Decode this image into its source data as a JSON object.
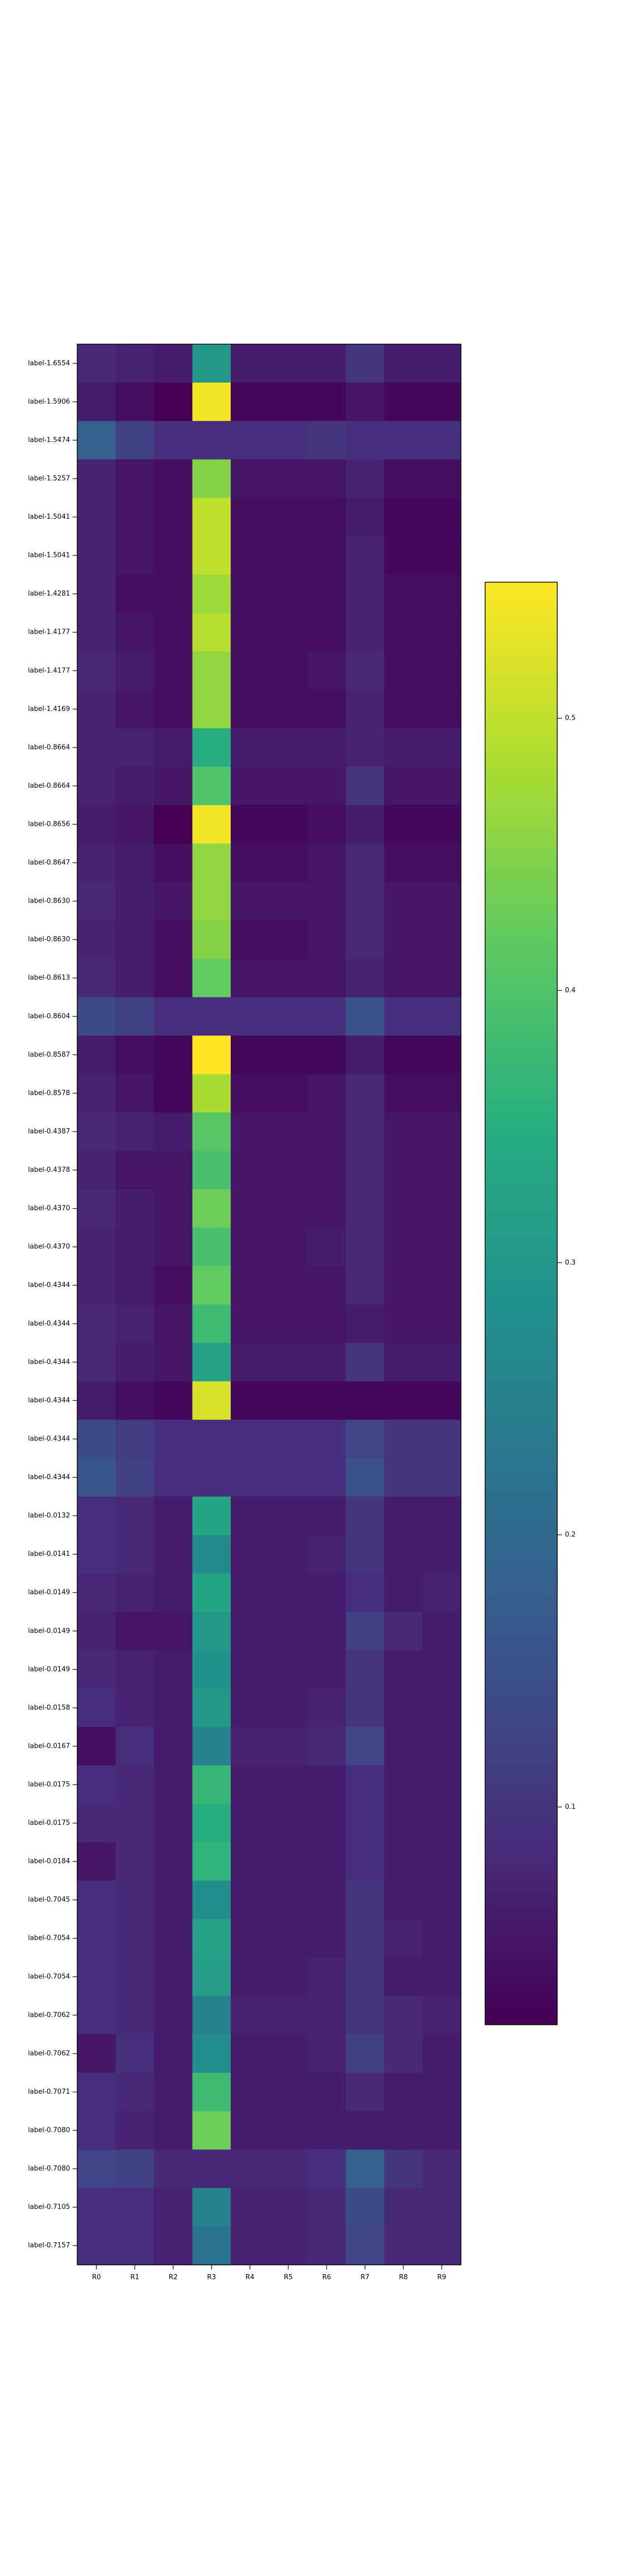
{
  "chart_data": {
    "type": "heatmap",
    "colormap": "viridis",
    "x_labels": [
      "R0",
      "R1",
      "R2",
      "R3",
      "R4",
      "R5",
      "R6",
      "R7",
      "R8",
      "R9"
    ],
    "y_labels": [
      "label-1.6554",
      "label-1.5906",
      "label-1.5474",
      "label-1.5257",
      "label-1.5041",
      "label-1.5041",
      "label-1.4281",
      "label-1.4177",
      "label-1.4177",
      "label-1.4169",
      "label-0.8664",
      "label-0.8664",
      "label-0.8656",
      "label-0.8647",
      "label-0.8630",
      "label-0.8630",
      "label-0.8613",
      "label-0.8604",
      "label-0.8587",
      "label-0.8578",
      "label-0.4387",
      "label-0.4378",
      "label-0.4370",
      "label-0.4370",
      "label-0.4344",
      "label-0.4344",
      "label-0.4344",
      "label-0.4344",
      "label-0.4344",
      "label-0.4344",
      "label-0.0132",
      "label-0.0141",
      "label-0.0149",
      "label-0.0149",
      "label-0.0149",
      "label-0.0158",
      "label-0.0167",
      "label-0.0175",
      "label-0.0175",
      "label-0.0184",
      "label-0.7045",
      "label-0.7054",
      "label-0.7054",
      "label-0.7062",
      "label-0.7062",
      "label-0.7071",
      "label-0.7080",
      "label-0.7080",
      "label-0.7105",
      "label-0.7157"
    ],
    "values": [
      [
        0.08,
        0.07,
        0.06,
        0.3,
        0.06,
        0.06,
        0.06,
        0.1,
        0.06,
        0.06
      ],
      [
        0.06,
        0.04,
        0.02,
        0.54,
        0.03,
        0.03,
        0.03,
        0.05,
        0.03,
        0.03
      ],
      [
        0.18,
        0.12,
        0.09,
        0.09,
        0.09,
        0.09,
        0.1,
        0.09,
        0.09,
        0.09
      ],
      [
        0.07,
        0.05,
        0.04,
        0.45,
        0.05,
        0.05,
        0.05,
        0.07,
        0.04,
        0.04
      ],
      [
        0.07,
        0.05,
        0.04,
        0.5,
        0.04,
        0.04,
        0.04,
        0.06,
        0.03,
        0.03
      ],
      [
        0.07,
        0.05,
        0.04,
        0.5,
        0.04,
        0.04,
        0.04,
        0.07,
        0.03,
        0.03
      ],
      [
        0.07,
        0.04,
        0.04,
        0.47,
        0.04,
        0.04,
        0.04,
        0.07,
        0.04,
        0.04
      ],
      [
        0.07,
        0.05,
        0.04,
        0.49,
        0.04,
        0.04,
        0.04,
        0.07,
        0.04,
        0.04
      ],
      [
        0.08,
        0.06,
        0.04,
        0.46,
        0.04,
        0.04,
        0.05,
        0.08,
        0.04,
        0.04
      ],
      [
        0.07,
        0.05,
        0.04,
        0.46,
        0.04,
        0.04,
        0.04,
        0.07,
        0.04,
        0.04
      ],
      [
        0.07,
        0.07,
        0.06,
        0.35,
        0.06,
        0.06,
        0.06,
        0.07,
        0.06,
        0.06
      ],
      [
        0.07,
        0.06,
        0.05,
        0.4,
        0.05,
        0.05,
        0.05,
        0.1,
        0.05,
        0.05
      ],
      [
        0.06,
        0.05,
        0.02,
        0.54,
        0.03,
        0.03,
        0.04,
        0.06,
        0.03,
        0.03
      ],
      [
        0.07,
        0.06,
        0.04,
        0.46,
        0.04,
        0.04,
        0.05,
        0.08,
        0.04,
        0.04
      ],
      [
        0.08,
        0.06,
        0.05,
        0.46,
        0.05,
        0.05,
        0.05,
        0.08,
        0.05,
        0.05
      ],
      [
        0.07,
        0.06,
        0.04,
        0.45,
        0.04,
        0.04,
        0.05,
        0.08,
        0.05,
        0.05
      ],
      [
        0.08,
        0.06,
        0.04,
        0.42,
        0.05,
        0.05,
        0.05,
        0.07,
        0.05,
        0.05
      ],
      [
        0.14,
        0.12,
        0.09,
        0.09,
        0.09,
        0.09,
        0.09,
        0.15,
        0.09,
        0.09
      ],
      [
        0.06,
        0.04,
        0.03,
        0.55,
        0.03,
        0.03,
        0.03,
        0.06,
        0.03,
        0.03
      ],
      [
        0.07,
        0.05,
        0.03,
        0.48,
        0.04,
        0.04,
        0.05,
        0.08,
        0.04,
        0.04
      ],
      [
        0.08,
        0.07,
        0.06,
        0.41,
        0.05,
        0.05,
        0.05,
        0.08,
        0.05,
        0.05
      ],
      [
        0.07,
        0.05,
        0.05,
        0.39,
        0.05,
        0.05,
        0.05,
        0.08,
        0.05,
        0.05
      ],
      [
        0.08,
        0.06,
        0.05,
        0.43,
        0.05,
        0.05,
        0.05,
        0.08,
        0.05,
        0.05
      ],
      [
        0.07,
        0.06,
        0.05,
        0.39,
        0.05,
        0.05,
        0.06,
        0.08,
        0.05,
        0.05
      ],
      [
        0.07,
        0.06,
        0.04,
        0.42,
        0.05,
        0.05,
        0.05,
        0.08,
        0.05,
        0.05
      ],
      [
        0.08,
        0.07,
        0.05,
        0.38,
        0.05,
        0.05,
        0.05,
        0.06,
        0.05,
        0.05
      ],
      [
        0.08,
        0.06,
        0.05,
        0.32,
        0.06,
        0.06,
        0.06,
        0.1,
        0.06,
        0.06
      ],
      [
        0.06,
        0.04,
        0.03,
        0.52,
        0.03,
        0.03,
        0.03,
        0.03,
        0.03,
        0.03
      ],
      [
        0.14,
        0.11,
        0.09,
        0.09,
        0.09,
        0.09,
        0.09,
        0.13,
        0.1,
        0.1
      ],
      [
        0.16,
        0.12,
        0.09,
        0.09,
        0.09,
        0.09,
        0.09,
        0.15,
        0.1,
        0.1
      ],
      [
        0.09,
        0.08,
        0.06,
        0.33,
        0.06,
        0.06,
        0.06,
        0.1,
        0.06,
        0.06
      ],
      [
        0.09,
        0.08,
        0.06,
        0.27,
        0.06,
        0.06,
        0.07,
        0.1,
        0.06,
        0.06
      ],
      [
        0.08,
        0.07,
        0.06,
        0.33,
        0.06,
        0.06,
        0.06,
        0.09,
        0.06,
        0.07
      ],
      [
        0.07,
        0.05,
        0.05,
        0.3,
        0.06,
        0.06,
        0.06,
        0.12,
        0.08,
        0.06
      ],
      [
        0.08,
        0.07,
        0.06,
        0.29,
        0.06,
        0.06,
        0.06,
        0.1,
        0.06,
        0.06
      ],
      [
        0.09,
        0.07,
        0.06,
        0.3,
        0.06,
        0.06,
        0.07,
        0.1,
        0.06,
        0.06
      ],
      [
        0.04,
        0.09,
        0.06,
        0.25,
        0.07,
        0.07,
        0.08,
        0.13,
        0.06,
        0.06
      ],
      [
        0.09,
        0.08,
        0.06,
        0.37,
        0.06,
        0.06,
        0.06,
        0.09,
        0.06,
        0.06
      ],
      [
        0.08,
        0.08,
        0.06,
        0.35,
        0.06,
        0.06,
        0.06,
        0.09,
        0.06,
        0.06
      ],
      [
        0.05,
        0.08,
        0.06,
        0.36,
        0.06,
        0.06,
        0.06,
        0.09,
        0.06,
        0.06
      ],
      [
        0.09,
        0.08,
        0.06,
        0.28,
        0.06,
        0.06,
        0.06,
        0.1,
        0.06,
        0.06
      ],
      [
        0.09,
        0.08,
        0.06,
        0.32,
        0.06,
        0.06,
        0.06,
        0.1,
        0.07,
        0.06
      ],
      [
        0.09,
        0.08,
        0.06,
        0.31,
        0.06,
        0.06,
        0.07,
        0.1,
        0.06,
        0.06
      ],
      [
        0.09,
        0.08,
        0.06,
        0.25,
        0.07,
        0.07,
        0.07,
        0.1,
        0.08,
        0.07
      ],
      [
        0.05,
        0.09,
        0.06,
        0.28,
        0.06,
        0.06,
        0.07,
        0.12,
        0.08,
        0.06
      ],
      [
        0.09,
        0.08,
        0.06,
        0.38,
        0.06,
        0.06,
        0.06,
        0.08,
        0.06,
        0.06
      ],
      [
        0.09,
        0.07,
        0.06,
        0.43,
        0.06,
        0.06,
        0.06,
        0.06,
        0.06,
        0.06
      ],
      [
        0.13,
        0.12,
        0.08,
        0.08,
        0.08,
        0.08,
        0.09,
        0.18,
        0.1,
        0.08
      ],
      [
        0.09,
        0.09,
        0.07,
        0.25,
        0.07,
        0.07,
        0.08,
        0.14,
        0.08,
        0.08
      ],
      [
        0.09,
        0.09,
        0.07,
        0.22,
        0.07,
        0.07,
        0.08,
        0.13,
        0.08,
        0.08
      ]
    ],
    "colorbar": {
      "min": 0.02,
      "max": 0.55,
      "ticks": [
        0.1,
        0.2,
        0.3,
        0.4,
        0.5
      ],
      "tick_labels": [
        "0.1",
        "0.2",
        "0.3",
        "0.4",
        "0.5"
      ]
    },
    "title": "",
    "xlabel": "",
    "ylabel": ""
  }
}
